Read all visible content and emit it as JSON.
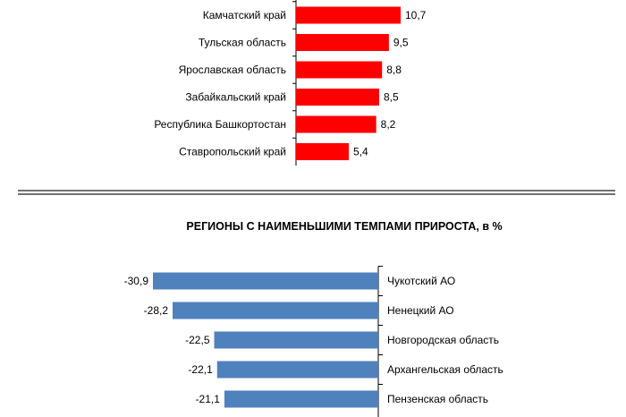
{
  "chart_data": [
    {
      "type": "bar",
      "orientation": "horizontal",
      "title": "",
      "categories": [
        "Камчатский край",
        "Тульская область",
        "Ярославская область",
        "Забайкальский край",
        "Республика Башкортостан",
        "Ставропольский край"
      ],
      "values": [
        10.7,
        9.5,
        8.8,
        8.5,
        8.2,
        5.4
      ],
      "value_labels": [
        "10,7",
        "9,5",
        "8,8",
        "8,5",
        "8,2",
        "5,4"
      ],
      "bar_color": "#ff0000",
      "xlim": [
        0,
        12
      ],
      "grid": false
    },
    {
      "type": "bar",
      "orientation": "horizontal",
      "title": "РЕГИОНЫ С НАИМЕНЬШИМИ ТЕМПАМИ ПРИРОСТА, в %",
      "categories": [
        "Чукотский АО",
        "Ненецкий АО",
        "Новгородская  область",
        "Архангельская область",
        "Пензенская область"
      ],
      "values": [
        -30.9,
        -28.2,
        -22.5,
        -22.1,
        -21.1
      ],
      "value_labels": [
        "-30,9",
        "-28,2",
        "-22,5",
        "-22,1",
        "-21,1"
      ],
      "bar_color": "#4f81bd",
      "xlim": [
        -33,
        0
      ],
      "grid": false
    }
  ]
}
